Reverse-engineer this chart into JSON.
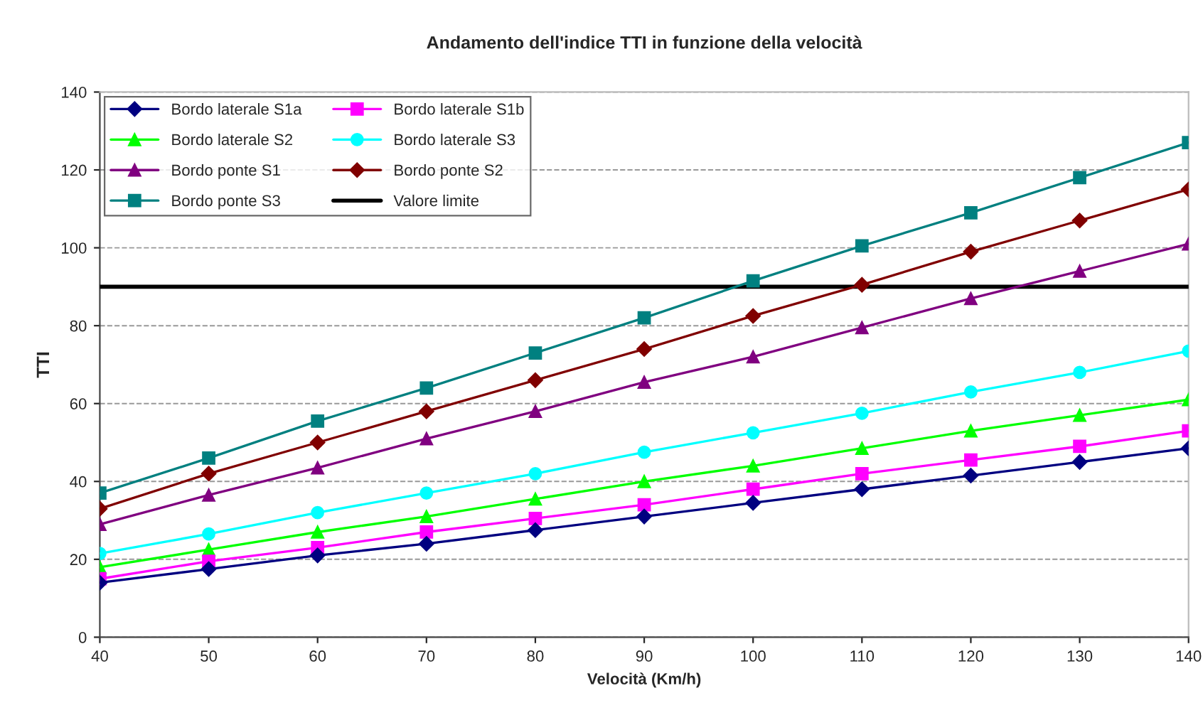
{
  "chart_data": {
    "type": "line",
    "title": "Andamento dell'indice TTI in funzione della velocità",
    "xlabel": "Velocità (Km/h)",
    "ylabel": "TTI",
    "x": [
      40,
      50,
      60,
      70,
      80,
      90,
      100,
      110,
      120,
      130,
      140
    ],
    "series": [
      {
        "name": "Bordo laterale S1a",
        "color": "#000080",
        "marker": "diamond",
        "values": [
          14,
          17.5,
          21,
          24,
          27.5,
          31,
          34.5,
          38,
          41.5,
          45,
          48.5
        ]
      },
      {
        "name": "Bordo laterale S1b",
        "color": "#ff00ff",
        "marker": "square",
        "values": [
          15,
          19.5,
          23,
          27,
          30.5,
          34,
          38,
          42,
          45.5,
          49,
          53
        ]
      },
      {
        "name": "Bordo laterale S2",
        "color": "#00ff00",
        "marker": "triangle",
        "values": [
          18,
          22.5,
          27,
          31,
          35.5,
          40,
          44,
          48.5,
          53,
          57,
          61
        ]
      },
      {
        "name": "Bordo laterale S3",
        "color": "#00ffff",
        "marker": "circle",
        "values": [
          21.5,
          26.5,
          32,
          37,
          42,
          47.5,
          52.5,
          57.5,
          63,
          68,
          73.5
        ]
      },
      {
        "name": "Bordo ponte S1",
        "color": "#800080",
        "marker": "triangle",
        "values": [
          29,
          36.5,
          43.5,
          51,
          58,
          65.5,
          72,
          79.5,
          87,
          94,
          101
        ]
      },
      {
        "name": "Bordo ponte S2",
        "color": "#800000",
        "marker": "diamond",
        "values": [
          33,
          42,
          50,
          58,
          66,
          74,
          82.5,
          90.5,
          99,
          107,
          115
        ]
      },
      {
        "name": "Bordo ponte S3",
        "color": "#008080",
        "marker": "square",
        "values": [
          37,
          46,
          55.5,
          64,
          73,
          82,
          91.5,
          100.5,
          109,
          118,
          127
        ]
      },
      {
        "name": "Valore limite",
        "color": "#000000",
        "marker": "none",
        "values": [
          90,
          90,
          90,
          90,
          90,
          90,
          90,
          90,
          90,
          90,
          90
        ]
      }
    ],
    "xlim": [
      40,
      140
    ],
    "xticks": [
      40,
      50,
      60,
      70,
      80,
      90,
      100,
      110,
      120,
      130,
      140
    ],
    "ylim": [
      0,
      140
    ],
    "yticks": [
      0,
      20,
      40,
      60,
      80,
      100,
      120,
      140
    ],
    "grid": "y",
    "legend": "top left",
    "line_style": "solid"
  }
}
